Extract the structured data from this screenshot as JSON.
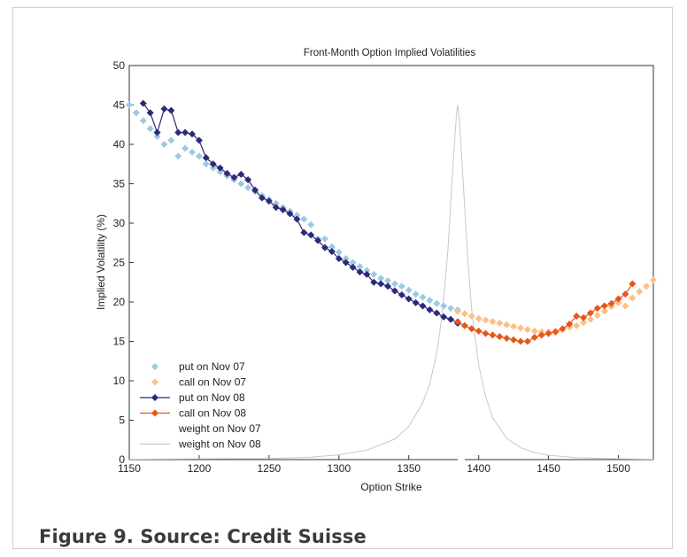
{
  "caption": "Figure 9. Source: Credit Suisse",
  "chart_data": {
    "type": "line",
    "title": "Front-Month Option Implied Volatilities",
    "xlabel": "Option Strike",
    "ylabel": "Implied Volatility (%)",
    "xlim": [
      1150,
      1525
    ],
    "ylim": [
      0,
      50
    ],
    "xticks": [
      1150,
      1200,
      1250,
      1300,
      1350,
      1400,
      1450,
      1500
    ],
    "yticks": [
      0,
      5,
      10,
      15,
      20,
      25,
      30,
      35,
      40,
      45,
      50
    ],
    "grid": false,
    "legend_position": "bottom-left",
    "series": [
      {
        "name": "put on Nov 07",
        "color": "#9ecae1",
        "marker": "diamond",
        "line": false,
        "x": [
          1150,
          1155,
          1160,
          1165,
          1170,
          1175,
          1180,
          1185,
          1190,
          1195,
          1200,
          1205,
          1210,
          1215,
          1220,
          1225,
          1230,
          1235,
          1240,
          1245,
          1250,
          1255,
          1260,
          1265,
          1270,
          1275,
          1280,
          1285,
          1290,
          1295,
          1300,
          1305,
          1310,
          1315,
          1320,
          1325,
          1330,
          1335,
          1340,
          1345,
          1350,
          1355,
          1360,
          1365,
          1370,
          1375,
          1380,
          1385
        ],
        "y": [
          45.0,
          44.0,
          43.0,
          42.0,
          41.0,
          40.0,
          40.5,
          38.5,
          39.5,
          39.0,
          38.5,
          37.5,
          37.0,
          36.5,
          36.0,
          35.5,
          35.0,
          34.5,
          34.0,
          33.5,
          33.0,
          32.5,
          32.0,
          31.5,
          31.0,
          30.5,
          29.8,
          28.0,
          28.0,
          27.0,
          26.3,
          25.5,
          25.0,
          24.5,
          24.0,
          23.5,
          23.0,
          22.7,
          22.3,
          22.0,
          21.5,
          21.0,
          20.6,
          20.2,
          19.8,
          19.5,
          19.2,
          19.0
        ]
      },
      {
        "name": "call on Nov 07",
        "color": "#fdbf86",
        "marker": "diamond",
        "line": false,
        "x": [
          1385,
          1390,
          1395,
          1400,
          1405,
          1410,
          1415,
          1420,
          1425,
          1430,
          1435,
          1440,
          1445,
          1450,
          1455,
          1460,
          1465,
          1470,
          1475,
          1480,
          1485,
          1490,
          1495,
          1500,
          1505,
          1510,
          1515,
          1520,
          1525
        ],
        "y": [
          18.8,
          18.5,
          18.2,
          17.9,
          17.7,
          17.5,
          17.3,
          17.1,
          16.9,
          16.7,
          16.5,
          16.3,
          16.2,
          16.2,
          16.3,
          16.5,
          16.8,
          17.0,
          17.4,
          17.8,
          18.3,
          18.8,
          19.4,
          19.9,
          19.5,
          20.5,
          21.3,
          22.0,
          22.8
        ]
      },
      {
        "name": "put on Nov 08",
        "color": "#2b2a7a",
        "marker": "diamond",
        "line": true,
        "x": [
          1160,
          1165,
          1170,
          1175,
          1180,
          1185,
          1190,
          1195,
          1200,
          1205,
          1210,
          1215,
          1220,
          1225,
          1230,
          1235,
          1240,
          1245,
          1250,
          1255,
          1260,
          1265,
          1270,
          1275,
          1280,
          1285,
          1290,
          1295,
          1300,
          1305,
          1310,
          1315,
          1320,
          1325,
          1330,
          1335,
          1340,
          1345,
          1350,
          1355,
          1360,
          1365,
          1370,
          1375,
          1380,
          1385
        ],
        "y": [
          45.2,
          44.0,
          41.5,
          44.5,
          44.3,
          41.5,
          41.5,
          41.3,
          40.5,
          38.3,
          37.5,
          37.0,
          36.3,
          35.8,
          36.2,
          35.5,
          34.2,
          33.2,
          32.8,
          32.0,
          31.7,
          31.2,
          30.5,
          28.8,
          28.5,
          27.8,
          26.9,
          26.4,
          25.5,
          25.0,
          24.4,
          23.8,
          23.5,
          22.5,
          22.3,
          22.0,
          21.4,
          20.9,
          20.4,
          19.9,
          19.5,
          19.0,
          18.6,
          18.1,
          17.8,
          17.3
        ]
      },
      {
        "name": "call on Nov 08",
        "color": "#e8561a",
        "marker": "diamond",
        "line": true,
        "x": [
          1385,
          1390,
          1395,
          1400,
          1405,
          1410,
          1415,
          1420,
          1425,
          1430,
          1435,
          1440,
          1445,
          1450,
          1455,
          1460,
          1465,
          1470,
          1475,
          1480,
          1485,
          1490,
          1495,
          1500,
          1505,
          1510
        ],
        "y": [
          17.5,
          17.0,
          16.6,
          16.3,
          16.0,
          15.8,
          15.6,
          15.4,
          15.2,
          15.0,
          15.0,
          15.5,
          15.8,
          16.0,
          16.2,
          16.6,
          17.2,
          18.2,
          18.0,
          18.6,
          19.2,
          19.5,
          19.8,
          20.4,
          21.0,
          22.3
        ]
      },
      {
        "name": "weight on Nov 07",
        "color": "#ffffff",
        "marker": "none",
        "line": true,
        "x": [
          1385,
          1390
        ],
        "y": [
          0,
          0
        ]
      },
      {
        "name": "weight on Nov 08",
        "color": "#c8c8c8",
        "marker": "none",
        "line": true,
        "x": [
          1150,
          1250,
          1280,
          1300,
          1320,
          1340,
          1350,
          1360,
          1365,
          1370,
          1374,
          1378,
          1380,
          1382,
          1384,
          1385,
          1386,
          1388,
          1390,
          1392,
          1395,
          1400,
          1405,
          1410,
          1420,
          1430,
          1440,
          1450,
          1470,
          1500,
          1525
        ],
        "y": [
          0.05,
          0.15,
          0.3,
          0.6,
          1.2,
          2.6,
          4.2,
          7.2,
          9.6,
          13.5,
          18.5,
          26.5,
          32.5,
          38.5,
          43.5,
          45.0,
          43.5,
          38.0,
          32.0,
          26.0,
          19.0,
          12.0,
          8.0,
          5.3,
          2.7,
          1.5,
          0.9,
          0.55,
          0.25,
          0.1,
          0.05
        ]
      }
    ]
  }
}
